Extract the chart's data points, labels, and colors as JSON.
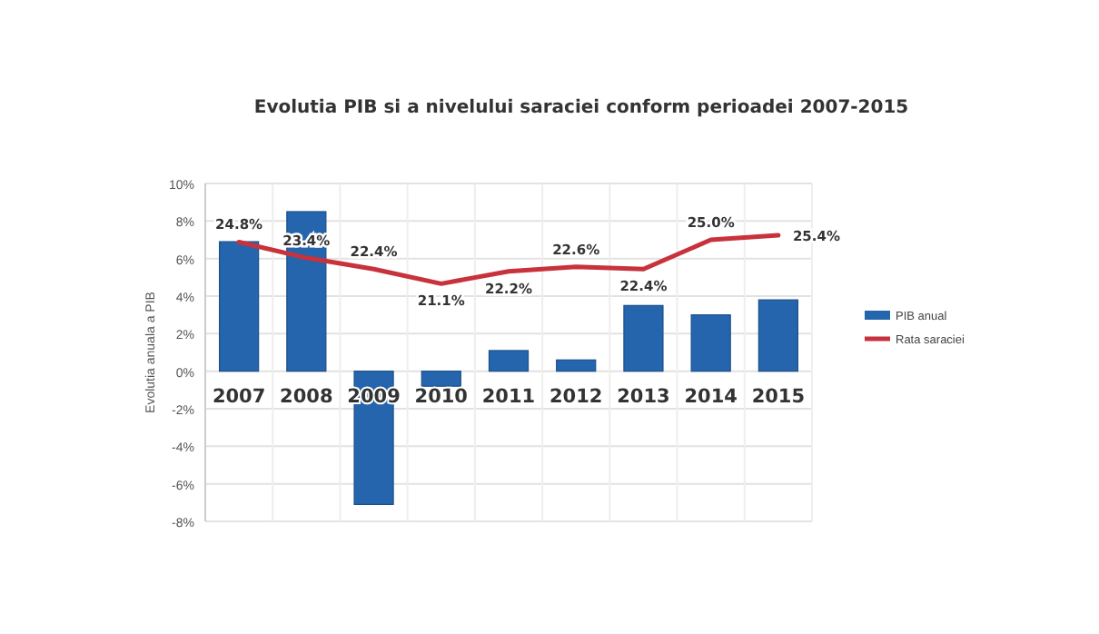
{
  "chart_data": {
    "type": "bar",
    "title": "Evolutia PIB si a nivelului saraciei conform perioadei 2007-2015",
    "ylabel": "Evolutia anuala a PIB",
    "categories": [
      "2007",
      "2008",
      "2009",
      "2010",
      "2011",
      "2012",
      "2013",
      "2014",
      "2015"
    ],
    "series": [
      {
        "name": "PIB anual",
        "color": "#2565ad",
        "values": [
          6.9,
          8.5,
          -7.1,
          -0.8,
          1.1,
          0.6,
          3.5,
          3.0,
          3.8
        ]
      },
      {
        "name": "Rata saraciei",
        "type": "line",
        "axis": "y2",
        "color": "#c8323c",
        "values": [
          24.8,
          23.4,
          22.4,
          21.1,
          22.2,
          22.6,
          22.4,
          25.0,
          25.4
        ],
        "value_labels": [
          "24.8%",
          "23.4%",
          "22.4%",
          "21.1%",
          "22.2%",
          "22.6%",
          "22.4%",
          "25.0%",
          "25.4%"
        ]
      }
    ],
    "ylim": [
      -8,
      10
    ],
    "yticks": [
      {
        "value": -8,
        "label": "-8%"
      },
      {
        "value": -6,
        "label": "-6%"
      },
      {
        "value": -4,
        "label": "-4%"
      },
      {
        "value": -2,
        "label": "-2%"
      },
      {
        "value": 0,
        "label": "0%"
      },
      {
        "value": 2,
        "label": "2%"
      },
      {
        "value": 4,
        "label": "4%"
      },
      {
        "value": 6,
        "label": "6%"
      },
      {
        "value": 8,
        "label": "8%"
      },
      {
        "value": 10,
        "label": "10%"
      }
    ],
    "y2lim": [
      0,
      30
    ],
    "grid": true,
    "legend": "right"
  }
}
